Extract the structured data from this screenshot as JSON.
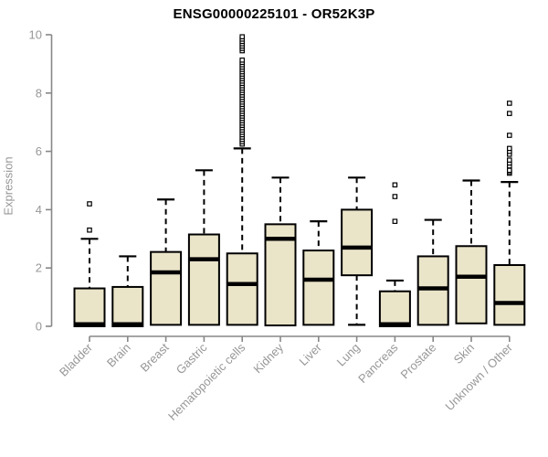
{
  "chart_data": {
    "type": "boxplot",
    "title": "ENSG00000225101 - OR52K3P",
    "ylabel": "Expression",
    "xlabel": "",
    "ylim": [
      0,
      10
    ],
    "yticks": [
      0,
      2,
      4,
      6,
      8,
      10
    ],
    "grid": false,
    "legend": "none",
    "categories": [
      "Bladder",
      "Brain",
      "Breast",
      "Gastric",
      "Hematopoietic cells",
      "Kidney",
      "Liver",
      "Lung",
      "Pancreas",
      "Prostate",
      "Skin",
      "Unknown / Other"
    ],
    "series": [
      {
        "name": "Bladder",
        "low": 0,
        "q1": 0,
        "median": 0.07,
        "q3": 1.3,
        "high": 3.0,
        "outliers": [
          3.3,
          4.2
        ]
      },
      {
        "name": "Brain",
        "low": 0,
        "q1": 0,
        "median": 0.07,
        "q3": 1.35,
        "high": 2.4,
        "outliers": []
      },
      {
        "name": "Breast",
        "low": 0.05,
        "q1": 0.05,
        "median": 1.85,
        "q3": 2.55,
        "high": 4.35,
        "outliers": []
      },
      {
        "name": "Gastric",
        "low": 0.05,
        "q1": 0.05,
        "median": 2.3,
        "q3": 3.15,
        "high": 5.35,
        "outliers": []
      },
      {
        "name": "Hematopoietic cells",
        "low": 0.05,
        "q1": 0.05,
        "median": 1.45,
        "q3": 2.5,
        "high": 6.1,
        "outliers": [
          6.25,
          6.33,
          6.41,
          6.49,
          6.57,
          6.65,
          6.73,
          6.81,
          6.89,
          6.97,
          7.05,
          7.13,
          7.21,
          7.29,
          7.37,
          7.45,
          7.53,
          7.61,
          7.69,
          7.77,
          7.85,
          7.93,
          8.01,
          8.09,
          8.17,
          8.25,
          8.33,
          8.41,
          8.49,
          8.57,
          8.65,
          8.73,
          8.81,
          8.89,
          8.97,
          9.05,
          9.13,
          9.45,
          9.53,
          9.61,
          9.69,
          9.77,
          9.85,
          9.93
        ]
      },
      {
        "name": "Kidney",
        "low": 0.03,
        "q1": 0.03,
        "median": 3.0,
        "q3": 3.5,
        "high": 5.1,
        "outliers": []
      },
      {
        "name": "Liver",
        "low": 0.05,
        "q1": 0.05,
        "median": 1.6,
        "q3": 2.6,
        "high": 3.6,
        "outliers": []
      },
      {
        "name": "Lung",
        "low": 0.05,
        "q1": 1.75,
        "median": 2.7,
        "q3": 4.0,
        "high": 5.1,
        "outliers": []
      },
      {
        "name": "Pancreas",
        "low": 0,
        "q1": 0,
        "median": 0.07,
        "q3": 1.2,
        "high": 1.57,
        "outliers": [
          3.6,
          4.45,
          4.85
        ]
      },
      {
        "name": "Prostate",
        "low": 0.05,
        "q1": 0.05,
        "median": 1.3,
        "q3": 2.4,
        "high": 3.65,
        "outliers": []
      },
      {
        "name": "Skin",
        "low": 0.1,
        "q1": 0.1,
        "median": 1.7,
        "q3": 2.75,
        "high": 5.0,
        "outliers": []
      },
      {
        "name": "Unknown / Other",
        "low": 0.05,
        "q1": 0.05,
        "median": 0.8,
        "q3": 2.1,
        "high": 4.95,
        "outliers": [
          5.25,
          5.3,
          5.35,
          5.5,
          5.6,
          5.7,
          5.9,
          6.0,
          6.1,
          6.55,
          7.3,
          7.65
        ]
      }
    ],
    "colors": {
      "box_fill": "#EAE4C9",
      "box_border": "#000000",
      "median": "#000000",
      "whisker": "#000000",
      "outlier_fill": "#FFFFFF",
      "outlier_border": "#000000",
      "axis": "#878787",
      "tick_text": "#979797",
      "title_text": "#000000",
      "background": "#FFFFFF"
    }
  }
}
